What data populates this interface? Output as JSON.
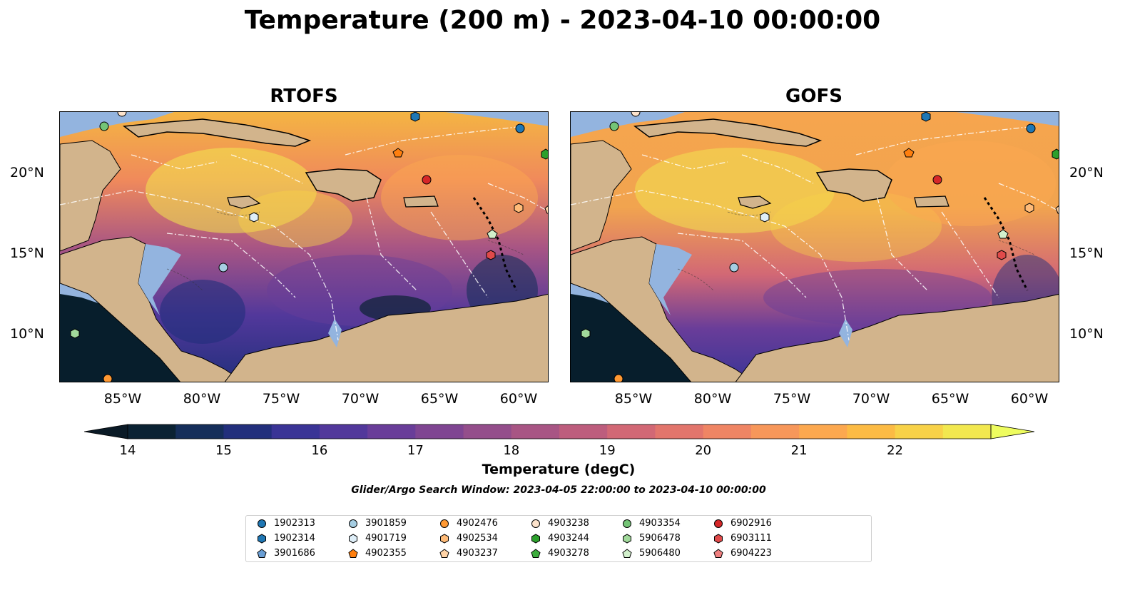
{
  "title": "Temperature (200 m) - 2023-04-10 00:00:00",
  "panels": [
    {
      "title": "RTOFS"
    },
    {
      "title": "GOFS"
    }
  ],
  "lat_labels": [
    "20°N",
    "15°N",
    "10°N"
  ],
  "lon_labels": [
    "85°W",
    "80°W",
    "75°W",
    "70°W",
    "65°W",
    "60°W"
  ],
  "colorbar": {
    "label": "Temperature (degC)",
    "ticks": [
      "14",
      "15",
      "16",
      "17",
      "18",
      "19",
      "20",
      "21",
      "22"
    ],
    "colors": [
      "#0b2233",
      "#152e5a",
      "#222f7c",
      "#3a3496",
      "#52389b",
      "#693d99",
      "#7f4592",
      "#944e8b",
      "#a85584",
      "#bd5d7d",
      "#d26875",
      "#e2756c",
      "#ef8564",
      "#f7975a",
      "#fca84f",
      "#fcbb44",
      "#f8d248",
      "#f2e84f"
    ],
    "under_color": "#0a1a26",
    "over_color": "#eefc5f"
  },
  "search_window": "Glider/Argo Search Window: 2023-04-05 22:00:00 to 2023-04-10 00:00:00",
  "legend": [
    {
      "id": "1902313",
      "color": "#1f77b4",
      "marker": "circle"
    },
    {
      "id": "1902314",
      "color": "#1f77b4",
      "marker": "hexagon"
    },
    {
      "id": "3901686",
      "color": "#6a9ed4",
      "marker": "pentagon"
    },
    {
      "id": "3901859",
      "color": "#a6cee3",
      "marker": "circle"
    },
    {
      "id": "4901719",
      "color": "#deeef8",
      "marker": "hexagon"
    },
    {
      "id": "4902355",
      "color": "#ff7f0e",
      "marker": "pentagon"
    },
    {
      "id": "4902476",
      "color": "#ff9933",
      "marker": "circle"
    },
    {
      "id": "4902534",
      "color": "#ffbb78",
      "marker": "hexagon"
    },
    {
      "id": "4903237",
      "color": "#ffd3a6",
      "marker": "pentagon"
    },
    {
      "id": "4903238",
      "color": "#fde3cc",
      "marker": "circle"
    },
    {
      "id": "4903244",
      "color": "#2ca02c",
      "marker": "hexagon"
    },
    {
      "id": "4903278",
      "color": "#3dad3d",
      "marker": "pentagon"
    },
    {
      "id": "4903354",
      "color": "#74c476",
      "marker": "circle"
    },
    {
      "id": "5906478",
      "color": "#a1d99b",
      "marker": "hexagon"
    },
    {
      "id": "5906480",
      "color": "#d2f0cc",
      "marker": "pentagon"
    },
    {
      "id": "6902916",
      "color": "#d62728",
      "marker": "circle"
    },
    {
      "id": "6903111",
      "color": "#e04a4a",
      "marker": "hexagon"
    },
    {
      "id": "6904223",
      "color": "#f08080",
      "marker": "pentagon"
    }
  ],
  "colors": {
    "land": "#d2b48c",
    "shelf": "#93b4df",
    "deep_pacific": "#071e2c",
    "eez": "#ffffff",
    "border": "#000000"
  }
}
